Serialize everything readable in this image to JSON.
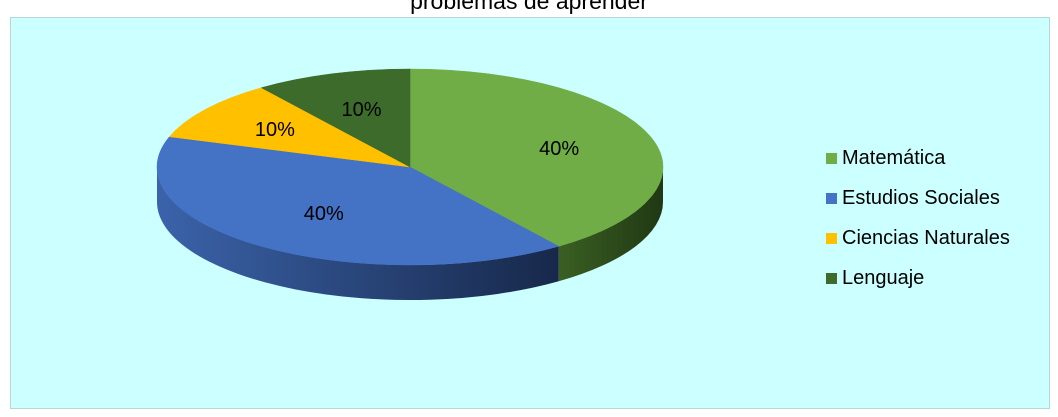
{
  "chart_data": {
    "type": "pie",
    "title": "problemas de aprender",
    "labels": [
      "Matemática",
      "Estudios Sociales",
      "Ciencias Naturales",
      "Lenguaje"
    ],
    "values": [
      40,
      40,
      10,
      10
    ],
    "data_labels": [
      "40%",
      "40%",
      "10%",
      "10%"
    ],
    "colors": [
      "#70ad47",
      "#4472c4",
      "#ffc000",
      "#3d6b2b"
    ],
    "side_colors": [
      "#2f4f1b",
      "#1c2f55",
      "#8a6a00",
      "#22381a"
    ],
    "legend_position": "right",
    "style": "3d-pie"
  }
}
